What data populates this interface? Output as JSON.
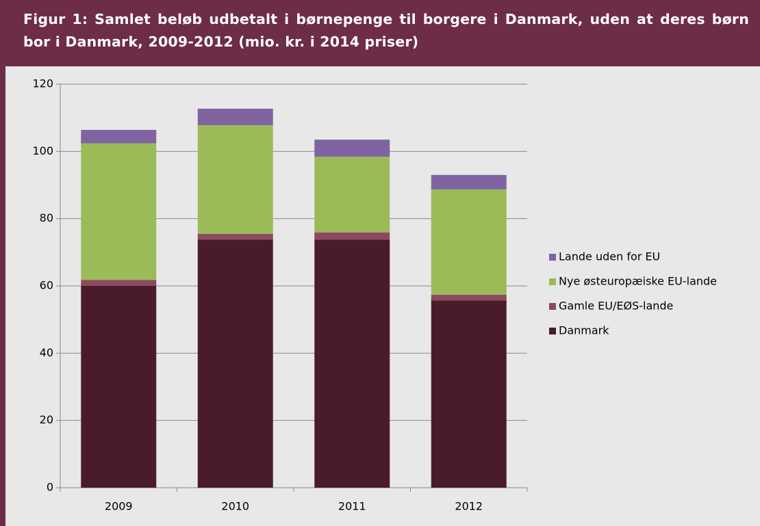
{
  "chart_data": {
    "type": "bar",
    "stacked": true,
    "title": "Figur 1: Samlet beløb udbetalt i børnepenge til borgere i Danmark, uden at deres børn bor i Danmark, 2009-2012 (mio. kr. i 2014 priser)",
    "categories": [
      "2009",
      "2010",
      "2011",
      "2012"
    ],
    "series": [
      {
        "name": "Danmark",
        "color": "#4a1c2b",
        "values": [
          60,
          73.8,
          73.8,
          55.7
        ]
      },
      {
        "name": "Gamle EU/EØS-lande",
        "color": "#8c4a5f",
        "values": [
          1.8,
          1.7,
          2.1,
          1.7
        ]
      },
      {
        "name": "Nye østeuropæiske EU-lande",
        "color": "#9bbb59",
        "values": [
          40.6,
          32.3,
          22.5,
          31.3
        ]
      },
      {
        "name": "Lande uden for EU",
        "color": "#8064a2",
        "values": [
          4,
          4.9,
          5.1,
          4.3
        ]
      }
    ],
    "ylim": [
      0,
      120
    ],
    "yticks": [
      0,
      20,
      40,
      60,
      80,
      100,
      120
    ],
    "grid": true,
    "legend": "right"
  }
}
